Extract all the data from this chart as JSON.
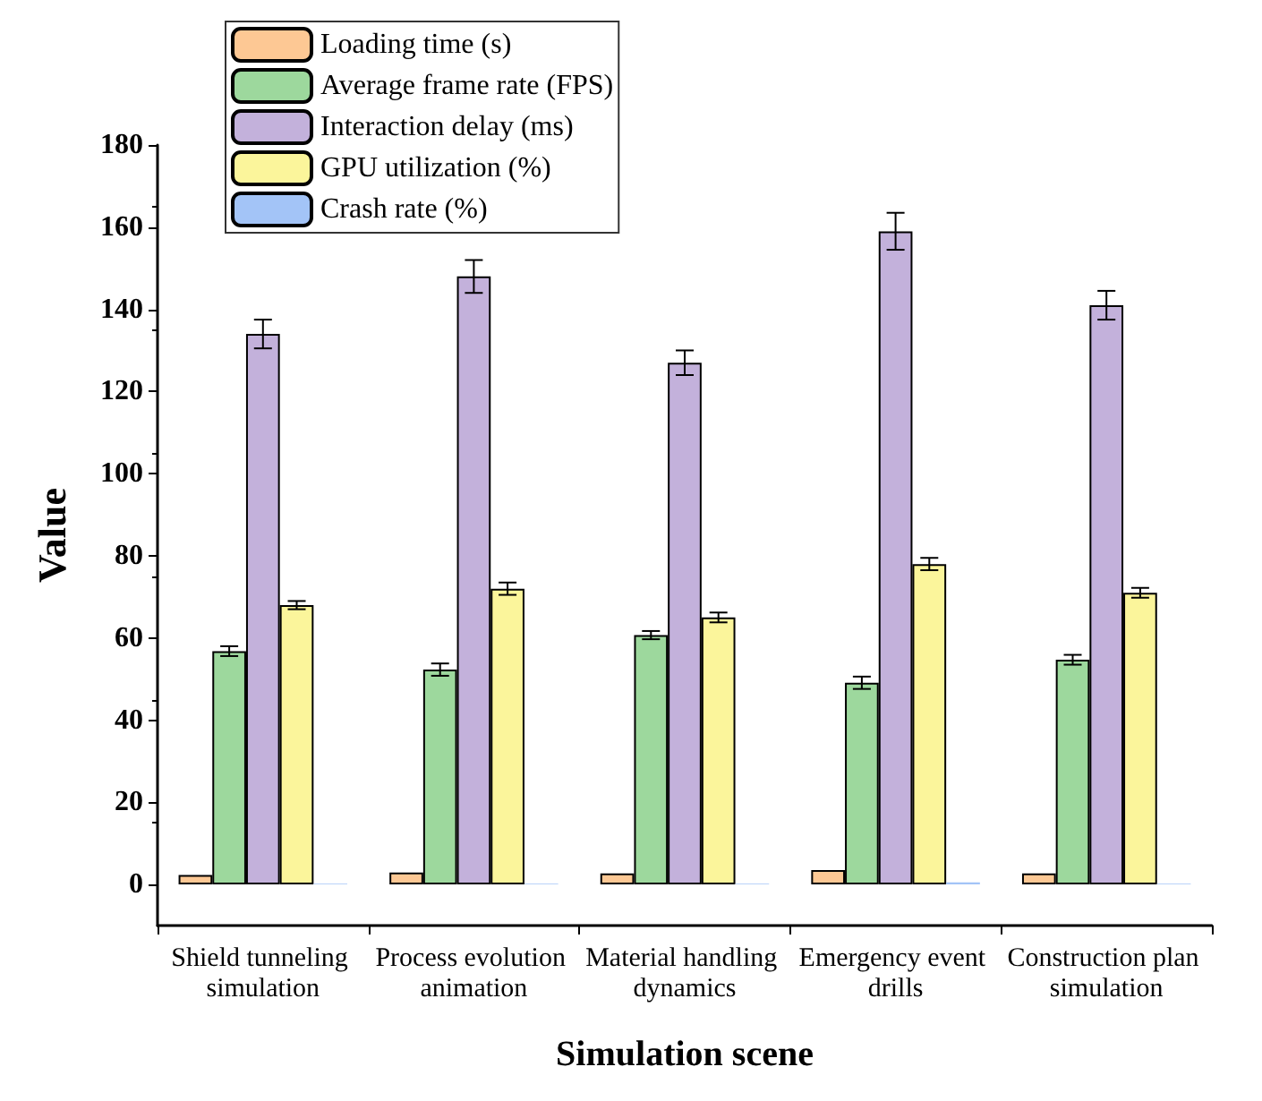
{
  "chart_data": {
    "type": "bar",
    "xlabel": "Simulation scene",
    "ylabel": "Value",
    "categories": [
      "Shield tunneling simulation",
      "Process evolution animation",
      "Material handling dynamics",
      "Emergency event drills",
      "Construction plan simulation"
    ],
    "series": [
      {
        "name": "Loading time (s)",
        "color": "#fdc894",
        "values": [
          2.3,
          2.9,
          2.7,
          3.5,
          2.7
        ]
      },
      {
        "name": "Average frame rate (FPS)",
        "color": "#9dd89d",
        "values": [
          56.8,
          52.3,
          60.7,
          49.1,
          54.7
        ],
        "errors": [
          1.2,
          1.5,
          1.0,
          1.5,
          1.2
        ]
      },
      {
        "name": "Interaction delay (ms)",
        "color": "#c3b1db",
        "values": [
          134,
          148,
          127,
          159,
          141
        ],
        "errors": [
          3.5,
          4,
          3,
          4.5,
          3.5
        ]
      },
      {
        "name": "GPU utilization (%)",
        "color": "#fbf59b",
        "values": [
          68,
          72,
          65,
          78,
          71
        ],
        "errors": [
          1,
          1.5,
          1.2,
          1.5,
          1.2
        ]
      },
      {
        "name": "Crash rate (%)",
        "color": "#a3c4f7",
        "values": [
          0.2,
          0.2,
          0.2,
          0.5,
          0.2
        ]
      }
    ],
    "ylim": [
      -10,
      180
    ],
    "yticks": [
      0,
      20,
      40,
      60,
      80,
      100,
      120,
      140,
      160,
      180
    ],
    "legend": "top left",
    "grid": false
  }
}
